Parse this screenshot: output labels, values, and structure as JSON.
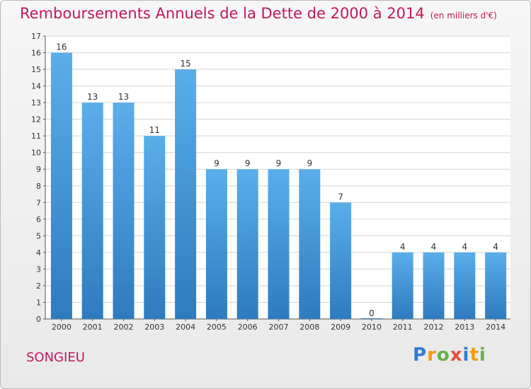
{
  "header": {
    "title": "Remboursements Annuels de la Dette de 2000 à 2014",
    "unit": "(en milliers d'€)"
  },
  "commune": "SONGIEU",
  "logo": {
    "text": "Proxiti",
    "letters": [
      "P",
      "r",
      "o",
      "x",
      "i",
      "t",
      "i"
    ],
    "colors": [
      "#2e7dd1",
      "#f39c12",
      "#6ab04c",
      "#e74c3c",
      "#2e7dd1",
      "#f39c12",
      "#6ab04c"
    ]
  },
  "colors": {
    "bar_top": "#5aaeea",
    "bar_bottom": "#2e7bbf",
    "title": "#c2185b",
    "grid": "#d6d6d6"
  },
  "chart_data": {
    "type": "bar",
    "title": "Remboursements Annuels de la Dette de 2000 à 2014",
    "ylabel": "en milliers d'€",
    "xlabel": "",
    "categories": [
      "2000",
      "2001",
      "2002",
      "2003",
      "2004",
      "2005",
      "2006",
      "2007",
      "2008",
      "2009",
      "2010",
      "2011",
      "2012",
      "2013",
      "2014"
    ],
    "values": [
      16,
      13,
      13,
      11,
      15,
      9,
      9,
      9,
      9,
      7,
      0,
      4,
      4,
      4,
      4
    ],
    "ylim": [
      0,
      17
    ],
    "yticks": [
      0,
      1,
      2,
      3,
      4,
      5,
      6,
      7,
      8,
      9,
      10,
      11,
      12,
      13,
      14,
      15,
      16,
      17
    ],
    "grid": true
  }
}
